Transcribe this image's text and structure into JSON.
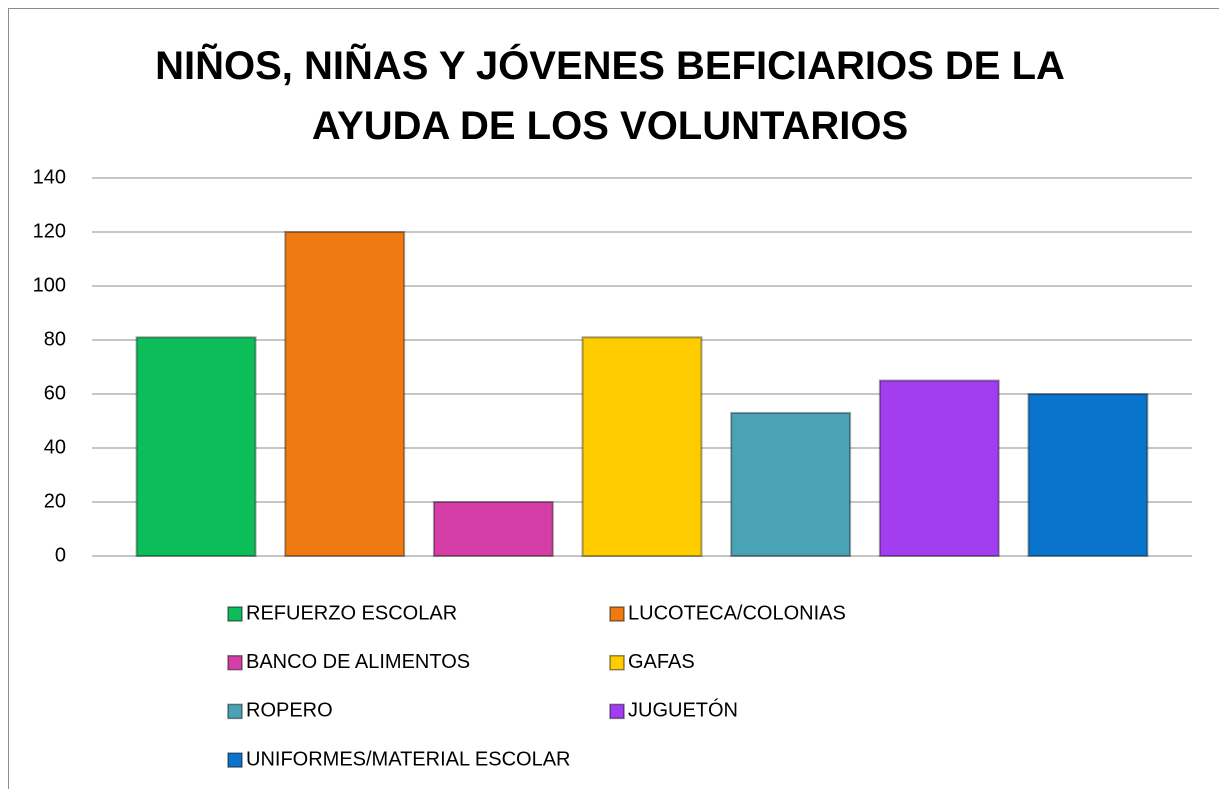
{
  "chart_data": {
    "type": "bar",
    "title": "NIÑOS, NIÑAS Y JÓVENES BEFICIARIOS DE LA AYUDA DE LOS VOLUNTARIOS",
    "categories": [
      null
    ],
    "series": [
      {
        "name": "REFUERZO ESCOLAR",
        "color": "#0dbd5a",
        "values": [
          81
        ]
      },
      {
        "name": "LUCOTECA/COLONIAS",
        "color": "#f07a12",
        "values": [
          120
        ]
      },
      {
        "name": "BANCO DE ALIMENTOS",
        "color": "#d43ea6",
        "values": [
          20
        ]
      },
      {
        "name": "GAFAS",
        "color": "#ffcc00",
        "values": [
          81
        ]
      },
      {
        "name": "ROPERO",
        "color": "#4aa2b7",
        "values": [
          53
        ]
      },
      {
        "name": "JUGUETÓN",
        "color": "#a23ef0",
        "values": [
          65
        ]
      },
      {
        "name": "UNIFORMES/MATERIAL ESCOLAR",
        "color": "#0a74cc",
        "values": [
          60
        ]
      }
    ],
    "ylim": [
      0,
      140
    ],
    "yticks": [
      0,
      20,
      40,
      60,
      80,
      100,
      120,
      140
    ],
    "grid": true
  }
}
